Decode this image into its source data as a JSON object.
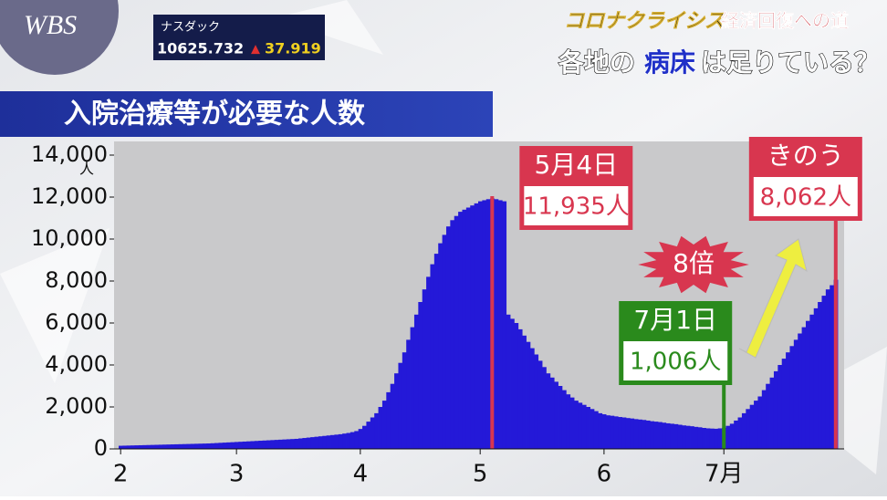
{
  "header": {
    "logo": "WBS",
    "ticker_name": "ナスダック",
    "ticker_value": "10625.732",
    "ticker_symbol": "▲",
    "ticker_change": "37.919",
    "series_title": "コロナクライシス",
    "series_subtitle": "経済回復への道",
    "headline": [
      "各地の",
      "病床",
      "は足りている？"
    ]
  },
  "chart_data": {
    "type": "bar",
    "title": "入院治療等が必要な人数",
    "ylabel": "人",
    "color": "#2419d8",
    "categories": [
      "2",
      null,
      null,
      null,
      null,
      null,
      null,
      null,
      null,
      null,
      null,
      null,
      null,
      null,
      null,
      null,
      null,
      null,
      null,
      null,
      null,
      null,
      null,
      null,
      null,
      null,
      null,
      null,
      null,
      "3",
      null,
      null,
      null,
      null,
      null,
      null,
      null,
      null,
      null,
      null,
      null,
      null,
      null,
      null,
      null,
      null,
      null,
      null,
      null,
      null,
      null,
      null,
      null,
      null,
      null,
      null,
      null,
      null,
      null,
      null,
      "4",
      null,
      null,
      null,
      null,
      null,
      null,
      null,
      null,
      null,
      null,
      null,
      null,
      null,
      null,
      null,
      null,
      null,
      null,
      null,
      null,
      null,
      null,
      null,
      null,
      null,
      null,
      null,
      null,
      null,
      "5",
      null,
      null,
      null,
      null,
      null,
      null,
      null,
      null,
      null,
      null,
      null,
      null,
      null,
      null,
      null,
      null,
      null,
      null,
      null,
      null,
      null,
      null,
      null,
      null,
      null,
      null,
      null,
      null,
      null,
      null,
      "6",
      null,
      null,
      null,
      null,
      null,
      null,
      null,
      null,
      null,
      null,
      null,
      null,
      null,
      null,
      null,
      null,
      null,
      null,
      null,
      null,
      null,
      null,
      null,
      null,
      null,
      null,
      null,
      null,
      null,
      "7月",
      null,
      null,
      null,
      null,
      null,
      null,
      null,
      null,
      null,
      null,
      null,
      null,
      null,
      null,
      null,
      null,
      null,
      null,
      null,
      null,
      null,
      null,
      null,
      null,
      null,
      null,
      null,
      null
    ],
    "values": [
      150,
      155,
      160,
      165,
      170,
      175,
      180,
      185,
      190,
      195,
      200,
      205,
      210,
      215,
      220,
      225,
      230,
      235,
      240,
      245,
      250,
      255,
      260,
      270,
      280,
      290,
      300,
      310,
      320,
      330,
      340,
      350,
      360,
      370,
      380,
      390,
      400,
      410,
      420,
      430,
      440,
      450,
      460,
      470,
      480,
      500,
      520,
      540,
      560,
      580,
      600,
      620,
      640,
      660,
      680,
      700,
      730,
      760,
      800,
      850,
      950,
      1100,
      1300,
      1500,
      1700,
      2000,
      2300,
      2700,
      3100,
      3600,
      4100,
      4600,
      5200,
      5800,
      6400,
      7000,
      7600,
      8200,
      8800,
      9300,
      9800,
      10200,
      10600,
      10900,
      11100,
      11300,
      11400,
      11500,
      11600,
      11700,
      11800,
      11850,
      11900,
      11935,
      11900,
      11850,
      11800,
      6400,
      6200,
      6000,
      5700,
      5400,
      5100,
      4800,
      4500,
      4200,
      3900,
      3600,
      3400,
      3200,
      3000,
      2800,
      2600,
      2450,
      2300,
      2200,
      2100,
      2000,
      1900,
      1800,
      1700,
      1650,
      1600,
      1580,
      1550,
      1520,
      1500,
      1470,
      1450,
      1420,
      1400,
      1380,
      1350,
      1320,
      1300,
      1280,
      1250,
      1220,
      1200,
      1180,
      1150,
      1120,
      1100,
      1080,
      1050,
      1030,
      1000,
      980,
      970,
      960,
      980,
      1006,
      1100,
      1200,
      1350,
      1500,
      1700,
      1900,
      2100,
      2300,
      2500,
      2800,
      3100,
      3400,
      3700,
      4000,
      4300,
      4600,
      4900,
      5200,
      5500,
      5800,
      6100,
      6400,
      6700,
      7000,
      7300,
      7600,
      7800,
      8062
    ],
    "value_labels": [
      null,
      null,
      null,
      null,
      null,
      null,
      null,
      null,
      null,
      null,
      null,
      null,
      null,
      null,
      null,
      null,
      null,
      null,
      null,
      null,
      null,
      null,
      null,
      null,
      null,
      null,
      null,
      null,
      null,
      null,
      null,
      null,
      null,
      null,
      null,
      null,
      null,
      null,
      null,
      null,
      null,
      null,
      null,
      null,
      null,
      null,
      null,
      null,
      null,
      null,
      null,
      null,
      null,
      null,
      null,
      null,
      null,
      null,
      null,
      null,
      null,
      null,
      null,
      null,
      null,
      null,
      null,
      null,
      null,
      null,
      null,
      null,
      null,
      null,
      null,
      null,
      null,
      null,
      null,
      null,
      null,
      null,
      null,
      null,
      null,
      null,
      null,
      null,
      null,
      null,
      null,
      null,
      null,
      "11,935人",
      null,
      null,
      null,
      null,
      null,
      null,
      null,
      null,
      null,
      null,
      null,
      null,
      null,
      null,
      null,
      null,
      null,
      null,
      null,
      null,
      null,
      null,
      null,
      null,
      null,
      null,
      null,
      null,
      null,
      null,
      null,
      null,
      null,
      null,
      null,
      null,
      null,
      null,
      null,
      null,
      null,
      null,
      null,
      null,
      null,
      null,
      null,
      null,
      null,
      null,
      null,
      null,
      null,
      null,
      null,
      null,
      null,
      "1,006人",
      null,
      null,
      null,
      null,
      null,
      null,
      null,
      null,
      null,
      null,
      null,
      null,
      null,
      null,
      null,
      null,
      null,
      null,
      null,
      null,
      null,
      null,
      null,
      null,
      null,
      null,
      null,
      "8,062人"
    ],
    "annotations": [
      {
        "text": "5月4日",
        "color": "#d8364f"
      },
      {
        "text": "7月1日",
        "color": "#2a8a1c"
      },
      {
        "text": "きのう",
        "color": "#d8364f"
      },
      {
        "text": "8倍",
        "color": "#d8364f"
      }
    ],
    "ylim": [
      0,
      14000
    ],
    "yticks": [
      0,
      {
        "value": 2000,
        "label": "2,000"
      },
      {
        "value": 4000,
        "label": "4,000"
      },
      {
        "value": 6000,
        "label": "6,000"
      },
      {
        "value": 8000,
        "label": "8,000"
      },
      {
        "value": 10000,
        "label": "10,000"
      },
      {
        "value": 12000,
        "label": "12,000"
      },
      {
        "value": 14000,
        "label": "14,000"
      }
    ],
    "grid": false
  }
}
